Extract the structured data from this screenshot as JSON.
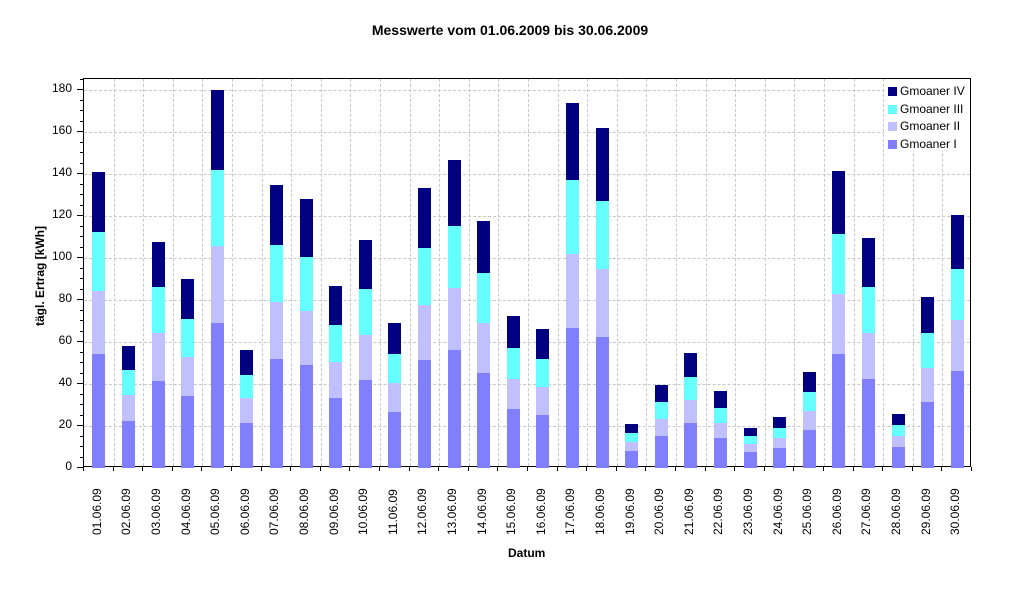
{
  "chart_data": {
    "type": "bar",
    "stacked": true,
    "title": "Messwerte vom 01.06.2009 bis 30.06.2009",
    "xlabel": "Datum",
    "ylabel": "tägl. Ertrag [kWh]",
    "ylim": [
      0,
      185
    ],
    "yticks": [
      0,
      20,
      40,
      60,
      80,
      100,
      120,
      140,
      160,
      180
    ],
    "grid": true,
    "legend_position": "top-right",
    "categories": [
      "01.06.09",
      "02.06.09",
      "03.06.09",
      "04.06.09",
      "05.06.09",
      "06.06.09",
      "07.06.09",
      "08.06.09",
      "09.06.09",
      "10.06.09",
      "11.06.09",
      "12.06.09",
      "13.06.09",
      "14.06.09",
      "15.06.09",
      "16.06.09",
      "17.06.09",
      "18.06.09",
      "19.06.09",
      "20.06.09",
      "21.06.09",
      "22.06.09",
      "23.06.09",
      "24.06.09",
      "25.06.09",
      "26.06.09",
      "27.06.09",
      "28.06.09",
      "29.06.09",
      "30.06.09"
    ],
    "series": [
      {
        "name": "Gmoaner I",
        "color": "#8080ff",
        "values": [
          54.4,
          22.3,
          41.3,
          34.2,
          69.0,
          21.3,
          52.0,
          49.2,
          33.5,
          42.1,
          26.8,
          51.6,
          56.2,
          45.2,
          28.1,
          25.3,
          66.9,
          62.2,
          8.3,
          15.4,
          21.3,
          14.1,
          7.8,
          9.7,
          17.9,
          54.4,
          42.4,
          10.2,
          31.4,
          46.0
        ]
      },
      {
        "name": "Gmoaner II",
        "color": "#c0c0ff",
        "values": [
          29.9,
          12.4,
          22.9,
          18.6,
          36.7,
          11.9,
          27.2,
          25.7,
          17.1,
          21.4,
          13.8,
          26.2,
          29.6,
          23.9,
          14.3,
          13.3,
          34.8,
          32.4,
          4.3,
          7.7,
          10.9,
          7.2,
          3.8,
          4.7,
          9.2,
          28.6,
          21.9,
          5.2,
          16.2,
          24.3
        ]
      },
      {
        "name": "Gmoaner III",
        "color": "#66ffff",
        "values": [
          28.1,
          11.9,
          22.0,
          18.1,
          36.3,
          11.0,
          27.1,
          25.7,
          17.7,
          21.9,
          13.8,
          27.1,
          29.5,
          23.8,
          14.8,
          13.4,
          35.3,
          32.4,
          4.3,
          8.1,
          11.0,
          7.1,
          3.8,
          4.8,
          9.1,
          28.6,
          21.9,
          5.2,
          16.7,
          24.3
        ]
      },
      {
        "name": "Gmoaner IV",
        "color": "#000080",
        "values": [
          28.6,
          11.4,
          21.6,
          19.1,
          38.0,
          11.9,
          28.6,
          27.7,
          18.5,
          23.4,
          14.8,
          28.6,
          31.4,
          24.8,
          15.2,
          14.3,
          36.8,
          34.8,
          4.2,
          8.1,
          11.4,
          8.1,
          3.8,
          5.2,
          9.5,
          30.0,
          23.2,
          5.3,
          17.0,
          25.7
        ]
      }
    ],
    "totals": [
      141.0,
      58.0,
      107.8,
      90.0,
      180.0,
      56.1,
      134.9,
      128.3,
      86.8,
      108.8,
      69.2,
      133.5,
      146.7,
      117.7,
      72.4,
      66.3,
      173.8,
      161.8,
      21.1,
      39.3,
      54.6,
      36.5,
      19.2,
      24.4,
      45.7,
      141.6,
      109.4,
      25.9,
      81.3,
      120.3
    ]
  },
  "title": "Messwerte vom 01.06.2009 bis 30.06.2009",
  "axes": {
    "x_title": "Datum",
    "y_title": "tägl. Ertrag [kWh]"
  },
  "legend": [
    {
      "name": "Gmoaner IV",
      "color": "#000080"
    },
    {
      "name": "Gmoaner III",
      "color": "#66ffff"
    },
    {
      "name": "Gmoaner II",
      "color": "#c0c0ff"
    },
    {
      "name": "Gmoaner I",
      "color": "#8080ff"
    }
  ]
}
